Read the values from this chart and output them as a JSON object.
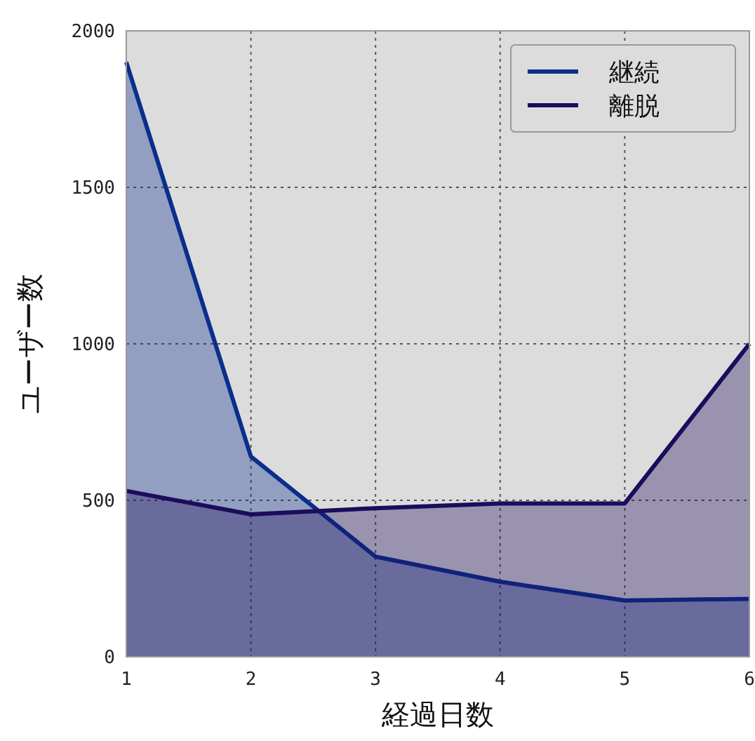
{
  "chart_data": {
    "type": "area",
    "xlabel": "経過日数",
    "ylabel": "ユーザー数",
    "x": [
      1,
      2,
      3,
      4,
      5,
      6
    ],
    "series": [
      {
        "name": "継続",
        "color": "#0a2e8c",
        "values": [
          1900,
          640,
          320,
          240,
          180,
          185
        ]
      },
      {
        "name": "離脱",
        "color": "#1c0c5c",
        "values": [
          530,
          455,
          475,
          490,
          490,
          1000
        ]
      }
    ],
    "xlim": [
      1,
      6
    ],
    "xticks": [
      1,
      2,
      3,
      4,
      5,
      6
    ],
    "ylim": [
      0,
      2000
    ],
    "yticks": [
      0,
      500,
      1000,
      1500,
      2000
    ],
    "grid": true,
    "legend": "top right"
  }
}
